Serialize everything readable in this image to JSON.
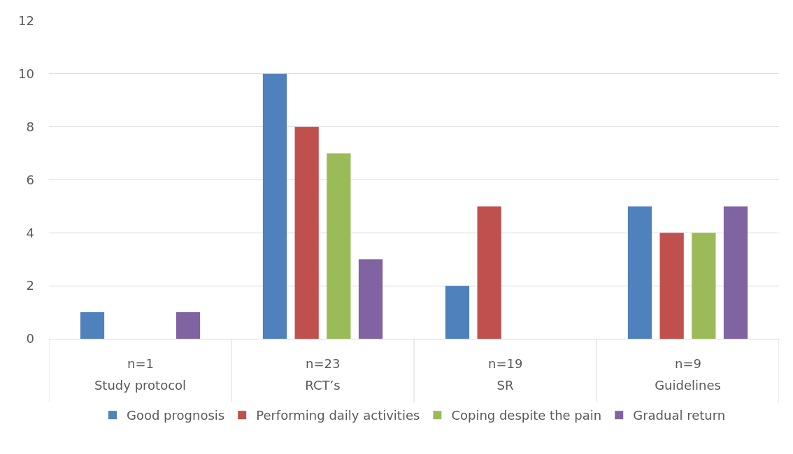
{
  "chart_data": {
    "type": "bar",
    "categories": [
      "Study protocol",
      "RCT’s",
      "SR",
      "Guidelines"
    ],
    "series": [
      {
        "name": "Good prognosis",
        "color": "#4f81bd",
        "values": [
          1,
          10,
          2,
          5
        ]
      },
      {
        "name": "Performing daily activities",
        "color": "#c0504d",
        "values": [
          0,
          8,
          5,
          4
        ]
      },
      {
        "name": "Coping despite the pain",
        "color": "#9bbb59",
        "values": [
          0,
          7,
          0,
          4
        ]
      },
      {
        "name": "Gradual return",
        "color": "#8064a2",
        "values": [
          1,
          3,
          0,
          5
        ]
      }
    ],
    "annotations": [
      "n=1",
      "n=23",
      "n=19",
      "n=9"
    ],
    "ylim": [
      0,
      12
    ],
    "yticks": [
      0,
      2,
      4,
      6,
      8,
      10,
      12
    ],
    "grid": "y",
    "legend": "bottom"
  }
}
